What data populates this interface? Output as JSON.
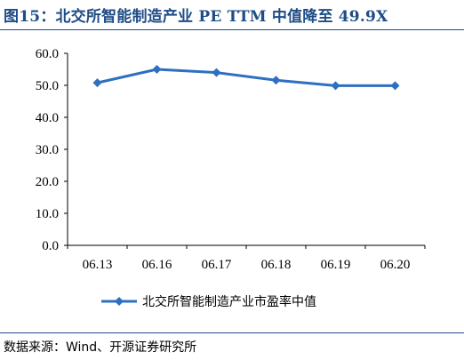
{
  "header": {
    "title": "图15：北交所智能制造产业 PE TTM 中值降至 49.9X"
  },
  "chart_data": {
    "type": "line",
    "title": "",
    "xlabel": "",
    "ylabel": "",
    "categories": [
      "06.13",
      "06.16",
      "06.17",
      "06.18",
      "06.19",
      "06.20"
    ],
    "series": [
      {
        "name": "北交所智能制造产业市盈率中值",
        "values": [
          50.8,
          55.0,
          54.0,
          51.6,
          49.9,
          49.9
        ],
        "color": "#2e6fc2"
      }
    ],
    "ylim": [
      0,
      60
    ],
    "yticks": [
      "0.0",
      "10.0",
      "20.0",
      "30.0",
      "40.0",
      "50.0",
      "60.0"
    ],
    "grid": false,
    "legend": "bottom",
    "marker": "diamond"
  },
  "footer": {
    "source": "数据来源：Wind、开源证券研究所"
  }
}
